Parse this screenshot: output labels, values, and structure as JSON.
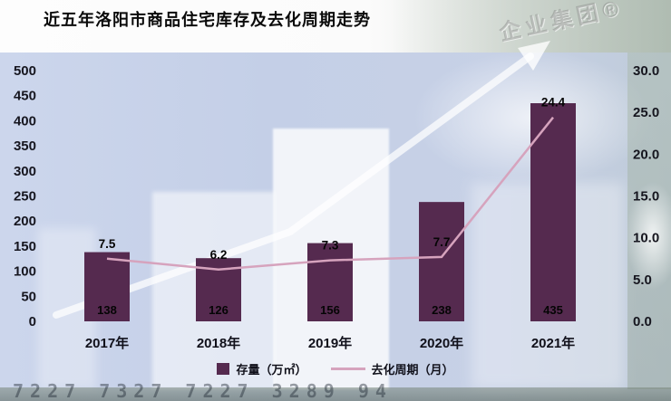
{
  "title": "近五年洛阳市商品住宅库存及去化周期走势",
  "watermark": "企业集团®",
  "background": {
    "ticker_digits": "7227  7327  7227  3289  94"
  },
  "legend": {
    "bar_label": "存量（万㎡）",
    "line_label": "去化周期（月）"
  },
  "colors": {
    "bar": "#552a4f",
    "line": "#d6a3bd",
    "background": "#c8d2e8",
    "label_text": "#10101a"
  },
  "chart_data": {
    "type": "bar+line combo",
    "title": "近五年洛阳市商品住宅库存及去化周期走势",
    "categories": [
      "2017年",
      "2018年",
      "2019年",
      "2020年",
      "2021年"
    ],
    "series": [
      {
        "name": "存量（万㎡）",
        "type": "bar",
        "axis": "left",
        "values": [
          138,
          126,
          156,
          238,
          435
        ]
      },
      {
        "name": "去化周期（月）",
        "type": "line",
        "axis": "right",
        "values": [
          7.5,
          6.2,
          7.3,
          7.7,
          24.4
        ]
      }
    ],
    "left_axis": {
      "min": 0,
      "max": 500,
      "step": 50,
      "ticks": [
        "500",
        "450",
        "400",
        "350",
        "300",
        "250",
        "200",
        "150",
        "100",
        "50",
        "0"
      ]
    },
    "right_axis": {
      "min": 0,
      "max": 30,
      "step": 5,
      "ticks": [
        "30.0",
        "25.0",
        "20.0",
        "15.0",
        "10.0",
        "5.0",
        "0.0"
      ]
    },
    "grid": false,
    "legend_position": "bottom"
  }
}
